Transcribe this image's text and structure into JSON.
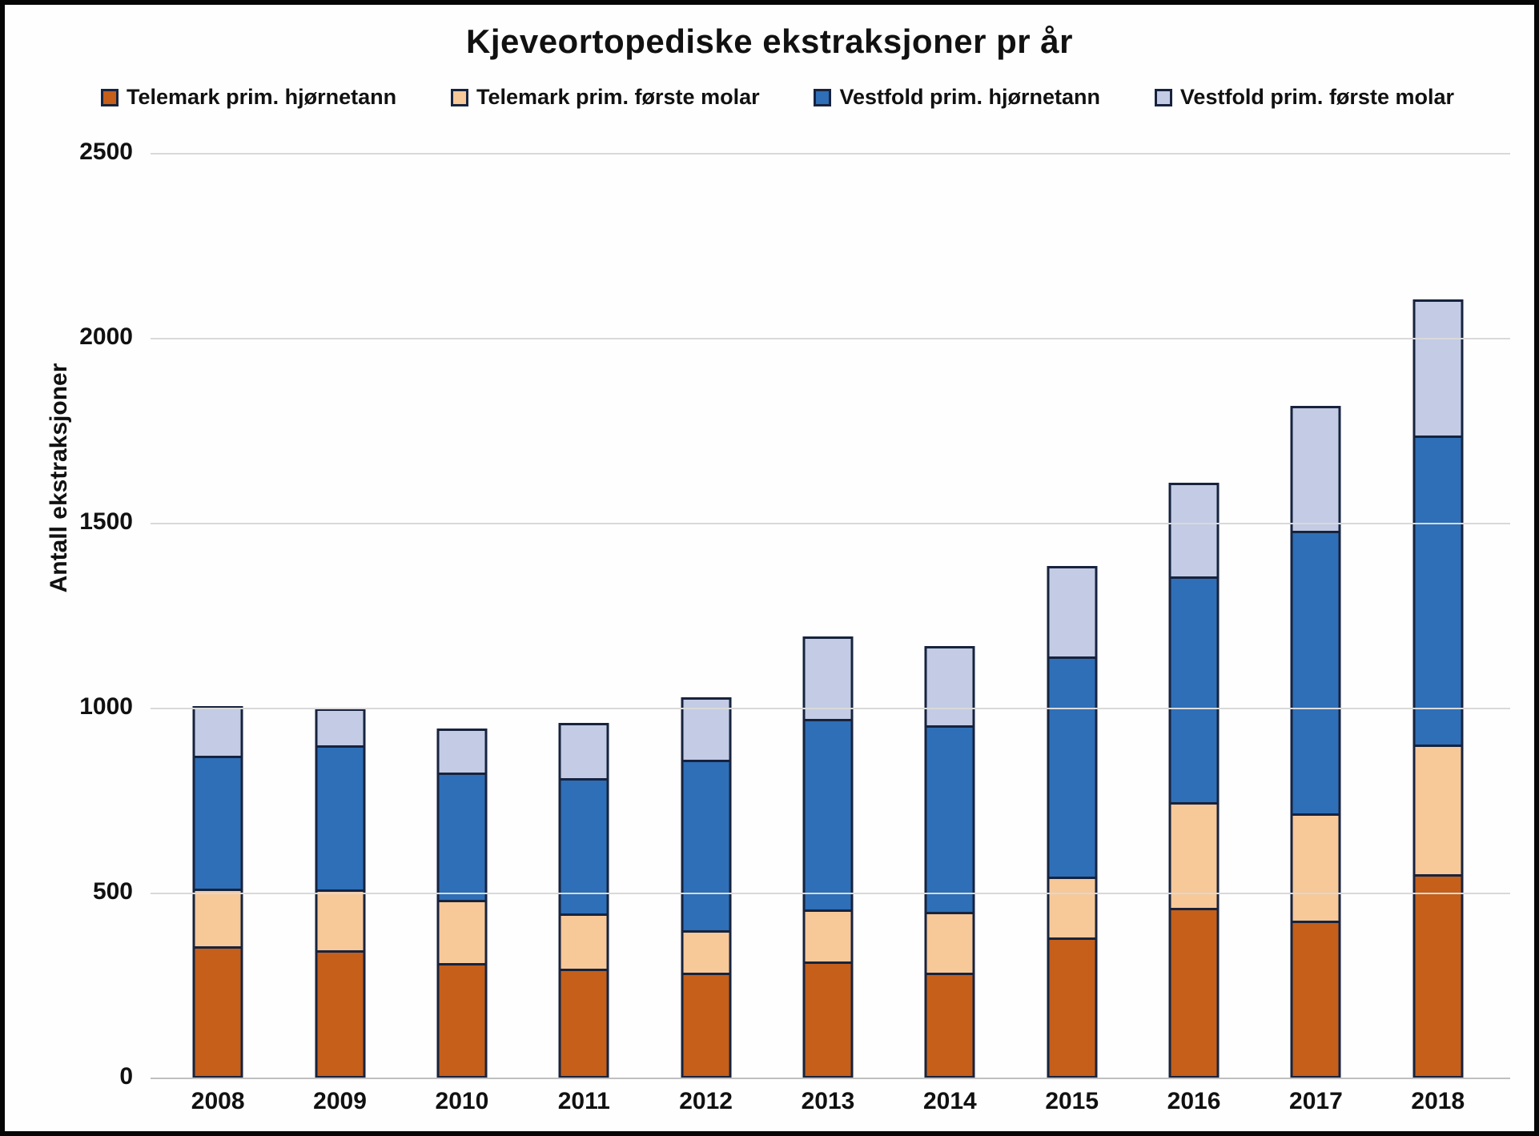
{
  "title": "Kjeveortopediske ekstraksjoner pr år",
  "y_axis": {
    "label": "Antall ekstraksjoner",
    "ticks": [
      "0",
      "500",
      "1000",
      "1500",
      "2000",
      "2500"
    ],
    "max": 2500
  },
  "colors": {
    "telemark_hjornetann": "#c55f1a",
    "telemark_forste_molar": "#f7c898",
    "vestfold_hjornetann": "#2e6fb7",
    "vestfold_forste_molar": "#c3cce4",
    "segment_border": "#17233e",
    "gridline": "#d9d9d9",
    "axis_line": "#bfbfbf",
    "frame_border": "#060606",
    "text": "#111111"
  },
  "chart_data": {
    "type": "bar",
    "stacked": true,
    "title": "Kjeveortopediske ekstraksjoner pr år",
    "xlabel": "",
    "ylabel": "Antall ekstraksjoner",
    "ylim": [
      0,
      2500
    ],
    "grid": true,
    "legend_position": "top",
    "categories": [
      "2008",
      "2009",
      "2010",
      "2011",
      "2012",
      "2013",
      "2014",
      "2015",
      "2016",
      "2017",
      "2018"
    ],
    "series": [
      {
        "name": "Telemark prim. hjørnetann",
        "color": "#c55f1a",
        "values": [
          350,
          340,
          305,
          290,
          280,
          310,
          280,
          375,
          455,
          420,
          545
        ]
      },
      {
        "name": "Telemark prim. første molar",
        "color": "#f7c898",
        "values": [
          155,
          165,
          170,
          150,
          115,
          140,
          165,
          165,
          285,
          290,
          350
        ]
      },
      {
        "name": "Vestfold prim. hjørnetann",
        "color": "#2e6fb7",
        "values": [
          360,
          390,
          345,
          365,
          460,
          515,
          505,
          595,
          610,
          765,
          835
        ]
      },
      {
        "name": "Vestfold prim. første molar",
        "color": "#c3cce4",
        "values": [
          140,
          105,
          125,
          155,
          175,
          230,
          220,
          250,
          260,
          345,
          375
        ]
      }
    ],
    "totals": [
      1005,
      1000,
      945,
      960,
      1030,
      1195,
      1170,
      1385,
      1610,
      1820,
      2105
    ]
  }
}
